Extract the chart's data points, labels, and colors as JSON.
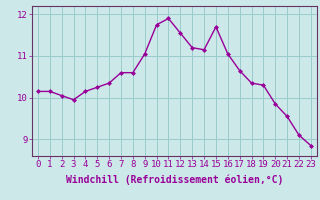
{
  "x": [
    0,
    1,
    2,
    3,
    4,
    5,
    6,
    7,
    8,
    9,
    10,
    11,
    12,
    13,
    14,
    15,
    16,
    17,
    18,
    19,
    20,
    21,
    22,
    23
  ],
  "y": [
    10.15,
    10.15,
    10.05,
    9.95,
    10.15,
    10.25,
    10.35,
    10.6,
    10.6,
    11.05,
    11.75,
    11.9,
    11.55,
    11.2,
    11.15,
    11.7,
    11.05,
    10.65,
    10.35,
    10.3,
    9.85,
    9.55,
    9.1,
    8.85
  ],
  "line_color": "#990099",
  "marker_color": "#990099",
  "bg_color": "#cce8e8",
  "grid_color": "#99cccc",
  "axis_color": "#663366",
  "tick_color": "#990099",
  "xlabel": "Windchill (Refroidissement éolien,°C)",
  "ylim": [
    8.6,
    12.2
  ],
  "yticks": [
    9,
    10,
    11,
    12
  ],
  "xticks": [
    0,
    1,
    2,
    3,
    4,
    5,
    6,
    7,
    8,
    9,
    10,
    11,
    12,
    13,
    14,
    15,
    16,
    17,
    18,
    19,
    20,
    21,
    22,
    23
  ],
  "font_size": 6.5,
  "xlabel_fontsize": 7.0,
  "marker_size": 2.0,
  "line_width": 1.0
}
